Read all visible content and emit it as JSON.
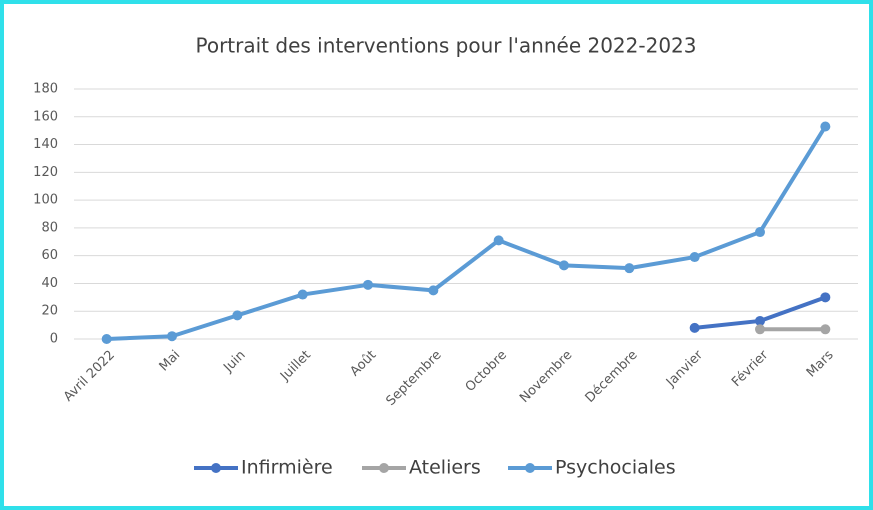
{
  "chart_data": {
    "type": "line",
    "title": "Portrait des interventions pour l'année 2022-2023",
    "categories": [
      "Avril 2022",
      "Mai",
      "Juin",
      "Juillet",
      "Août",
      "Septembre",
      "Octobre",
      "Novembre",
      "Décembre",
      "Janvier",
      "Février",
      "Mars"
    ],
    "series": [
      {
        "name": "Infirmière",
        "color": "#4472c4",
        "values": [
          null,
          null,
          null,
          null,
          null,
          null,
          null,
          null,
          null,
          8,
          13,
          30
        ]
      },
      {
        "name": "Ateliers",
        "color": "#a5a5a5",
        "values": [
          null,
          null,
          null,
          null,
          null,
          null,
          null,
          null,
          null,
          null,
          7,
          7
        ]
      },
      {
        "name": "Psychociales",
        "color": "#5b9bd5",
        "values": [
          0,
          2,
          17,
          32,
          39,
          35,
          71,
          53,
          51,
          59,
          77,
          153
        ]
      }
    ],
    "ylim": [
      0,
      180
    ],
    "yticks": [
      0,
      20,
      40,
      60,
      80,
      100,
      120,
      140,
      160,
      180
    ],
    "grid": true,
    "legend": "bottom"
  }
}
